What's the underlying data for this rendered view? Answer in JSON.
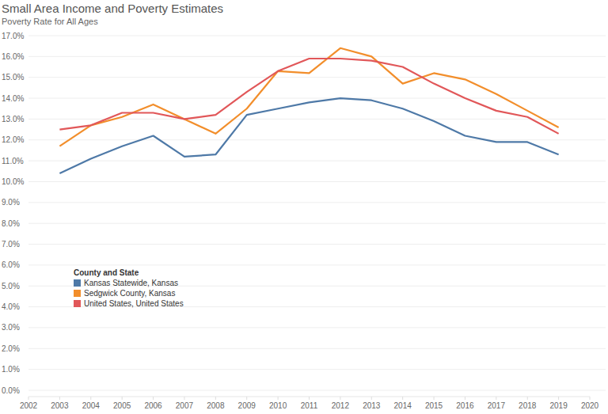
{
  "chart_data": {
    "type": "line",
    "title": "Small Area Income and Poverty Estimates",
    "subtitle": "Poverty Rate for All Ages",
    "legend_title": "County and State",
    "legend": "left",
    "grid": true,
    "x": [
      2003,
      2004,
      2005,
      2006,
      2007,
      2008,
      2009,
      2010,
      2011,
      2012,
      2013,
      2014,
      2015,
      2016,
      2017,
      2018,
      2019
    ],
    "xlim": [
      2002,
      2020
    ],
    "xticks": [
      2002,
      2003,
      2004,
      2005,
      2006,
      2007,
      2008,
      2009,
      2010,
      2011,
      2012,
      2013,
      2014,
      2015,
      2016,
      2017,
      2018,
      2019,
      2020
    ],
    "ylim": [
      0,
      17
    ],
    "yticks": [
      {
        "value": 0,
        "label": "0.0%"
      },
      {
        "value": 1,
        "label": "1.0%"
      },
      {
        "value": 2,
        "label": "2.0%"
      },
      {
        "value": 3,
        "label": "3.0%"
      },
      {
        "value": 4,
        "label": "4.0%"
      },
      {
        "value": 5,
        "label": "5.0%"
      },
      {
        "value": 6,
        "label": "6.0%"
      },
      {
        "value": 7,
        "label": "7.0%"
      },
      {
        "value": 8,
        "label": "8.0%"
      },
      {
        "value": 9,
        "label": "9.0%"
      },
      {
        "value": 10,
        "label": "10.0%"
      },
      {
        "value": 11,
        "label": "11.0%"
      },
      {
        "value": 12,
        "label": "12.0%"
      },
      {
        "value": 13,
        "label": "13.0%"
      },
      {
        "value": 14,
        "label": "14.0%"
      },
      {
        "value": 15,
        "label": "15.0%"
      },
      {
        "value": 16,
        "label": "16.0%"
      },
      {
        "value": 17,
        "label": "17.0%"
      }
    ],
    "series": [
      {
        "name": "Kansas Statewide, Kansas",
        "color": "#4e79a7",
        "values": [
          10.4,
          11.1,
          11.7,
          12.2,
          11.2,
          11.3,
          13.2,
          13.5,
          13.8,
          14.0,
          13.9,
          13.5,
          12.9,
          12.2,
          11.9,
          11.9,
          11.3
        ]
      },
      {
        "name": "Sedgwick County, Kansas",
        "color": "#f28e2b",
        "values": [
          11.7,
          12.7,
          13.1,
          13.7,
          13.0,
          12.3,
          13.5,
          15.3,
          15.2,
          16.4,
          16.0,
          14.7,
          15.2,
          14.9,
          14.2,
          13.4,
          12.6
        ]
      },
      {
        "name": "United States, United States",
        "color": "#e15759",
        "values": [
          12.5,
          12.7,
          13.3,
          13.3,
          13.0,
          13.2,
          14.3,
          15.3,
          15.9,
          15.9,
          15.8,
          15.5,
          14.7,
          14.0,
          13.4,
          13.1,
          12.3
        ]
      }
    ]
  }
}
